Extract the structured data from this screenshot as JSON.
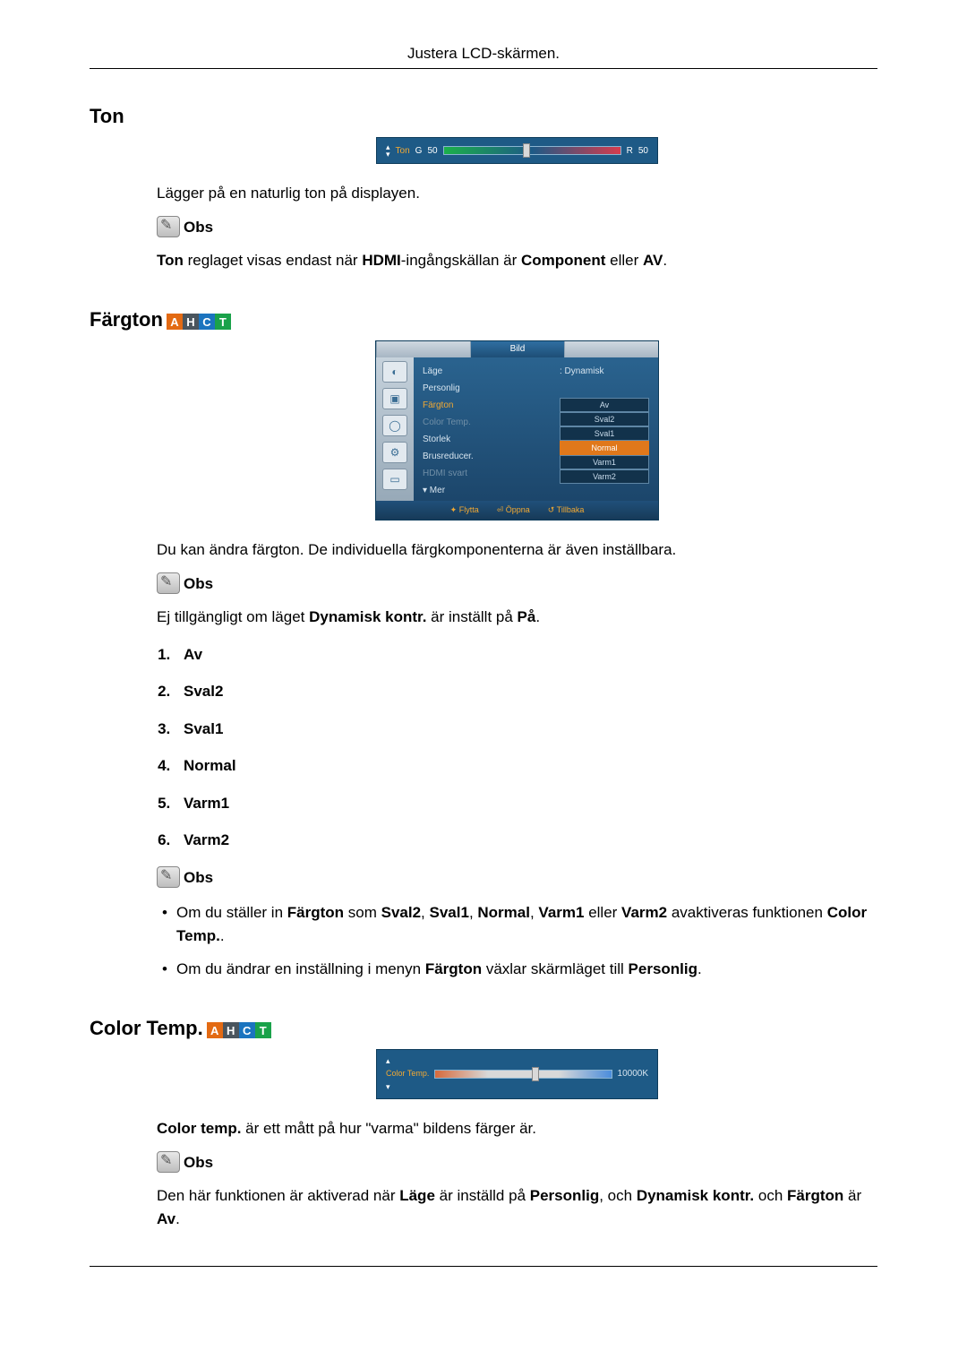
{
  "header": {
    "title": "Justera LCD-skärmen."
  },
  "sections": {
    "ton": {
      "heading": "Ton",
      "osd": {
        "label": "Ton",
        "left_letter": "G",
        "left_value": "50",
        "right_letter": "R",
        "right_value": "50",
        "thumb_pct": 45,
        "track_gradient": [
          "#1bb04a",
          "#1e5a86",
          "#d63c4e"
        ],
        "bg": "#1e5a86"
      },
      "desc": "Lägger på en naturlig ton på displayen.",
      "note_label": "Obs",
      "note_text_prefix": "Ton",
      "note_text_mid": " reglaget visas endast när ",
      "note_text_bold1": "HDMI",
      "note_text_mid2": "-ingångskällan är ",
      "note_text_bold2": "Component",
      "note_text_mid3": " eller ",
      "note_text_bold3": "AV",
      "note_text_end": "."
    },
    "fargton": {
      "heading": "Färgton",
      "badges": [
        {
          "letter": "A",
          "bg": "#e36a13"
        },
        {
          "letter": "H",
          "bg": "#4a555e"
        },
        {
          "letter": "C",
          "bg": "#1b74bf"
        },
        {
          "letter": "T",
          "bg": "#1aa24a"
        }
      ],
      "menu": {
        "title_tab": "Bild",
        "side_icons": [
          "◐",
          "▣",
          "◯",
          "⚙",
          "▭"
        ],
        "labels": [
          {
            "text": "Läge",
            "cls": ""
          },
          {
            "text": "Personlig",
            "cls": ""
          },
          {
            "text": "Färgton",
            "cls": "highlight"
          },
          {
            "text": "Color Temp.",
            "cls": "dim"
          },
          {
            "text": "Storlek",
            "cls": ""
          },
          {
            "text": "Brusreducer.",
            "cls": ""
          },
          {
            "text": "HDMI svart",
            "cls": "dim"
          },
          {
            "text": "▾ Mer",
            "cls": ""
          }
        ],
        "right_first": ": Dynamisk",
        "values": [
          {
            "text": "Av",
            "sel": false
          },
          {
            "text": "Sval2",
            "sel": false
          },
          {
            "text": "Sval1",
            "sel": false
          },
          {
            "text": "Normal",
            "sel": true
          },
          {
            "text": "Varm1",
            "sel": false
          },
          {
            "text": "Varm2",
            "sel": false
          }
        ],
        "footer": [
          "✦ Flytta",
          "⏎ Öppna",
          "↺ Tillbaka"
        ]
      },
      "desc": "Du kan ändra färgton. De individuella färgkomponenterna är även inställbara.",
      "note_label": "Obs",
      "note_text_pre": "Ej tillgängligt om läget ",
      "note_text_b1": "Dynamisk kontr.",
      "note_text_mid": " är inställt på ",
      "note_text_b2": "På",
      "note_text_end": ".",
      "list": [
        "Av",
        "Sval2",
        "Sval1",
        "Normal",
        "Varm1",
        "Varm2"
      ],
      "note2_label": "Obs",
      "bullet1_parts": {
        "p1": "Om du ställer in ",
        "b1": "Färgton",
        "p2": " som ",
        "b2": "Sval2",
        "p3": ", ",
        "b3": "Sval1",
        "p4": ", ",
        "b4": "Normal",
        "p5": ", ",
        "b5": "Varm1",
        "p6": " eller ",
        "b6": "Varm2",
        "p7": " avaktiveras funktionen ",
        "b7": "Color Temp.",
        "p8": "."
      },
      "bullet2_parts": {
        "p1": "Om du ändrar en inställning i menyn ",
        "b1": "Färgton",
        "p2": " växlar skärmläget till ",
        "b2": "Personlig",
        "p3": "."
      }
    },
    "colortemp": {
      "heading": "Color Temp.",
      "badges": [
        {
          "letter": "A",
          "bg": "#e36a13"
        },
        {
          "letter": "H",
          "bg": "#4a555e"
        },
        {
          "letter": "C",
          "bg": "#1b74bf"
        },
        {
          "letter": "T",
          "bg": "#1aa24a"
        }
      ],
      "osd": {
        "label": "Color Temp.",
        "value": "10000K",
        "thumb_pct": 55,
        "bg": "#1e5a86",
        "label_color": "#f2a933"
      },
      "desc_pre": "Color temp.",
      "desc_rest": " är ett mått på hur \"varma\" bildens färger är.",
      "note_label": "Obs",
      "note_parts": {
        "p1": "Den här funktionen är aktiverad när ",
        "b1": "Läge",
        "p2": " är inställd på ",
        "b2": "Personlig",
        "p3": ", och ",
        "b3": "Dynamisk kontr.",
        "p4": " och ",
        "b4": "Färgton",
        "p5": " är ",
        "b5": "Av",
        "p6": "."
      }
    }
  }
}
